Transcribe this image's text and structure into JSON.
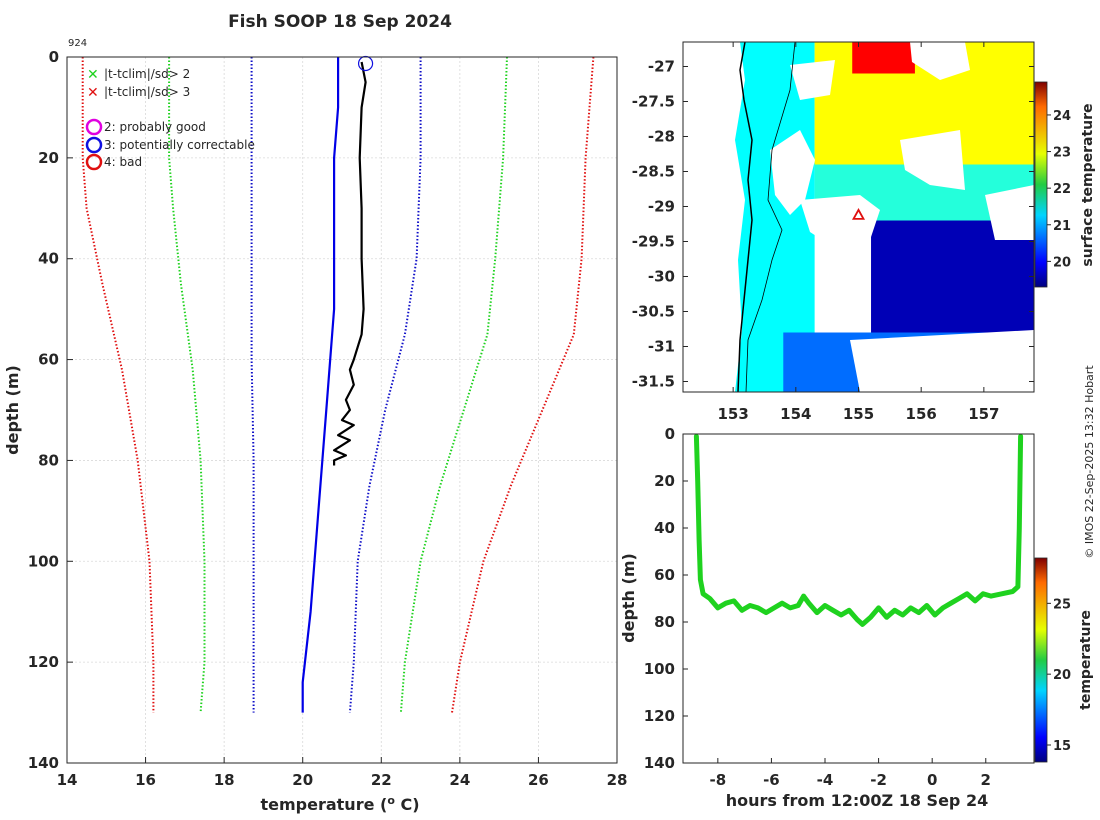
{
  "title": "Fish SOOP 18 Sep 2024",
  "id_label": "924",
  "credit": "© IMOS 22-Sep-2025 13:32 Hobart",
  "legend": {
    "items": [
      {
        "label": "|t-tclim|/sd> 2",
        "color": "#1fd21f",
        "marker": "x"
      },
      {
        "label": "|t-tclim|/sd> 3",
        "color": "#e01010",
        "marker": "x"
      },
      {
        "label": "2: probably good",
        "color": "#e000e0",
        "marker": "o"
      },
      {
        "label": "3: potentially correctable",
        "color": "#1010e0",
        "marker": "o"
      },
      {
        "label": "4: bad",
        "color": "#e01010",
        "marker": "o"
      }
    ]
  },
  "chart_data": [
    {
      "type": "line",
      "name": "temperature-profile",
      "title": "Fish SOOP 18 Sep 2024",
      "xlabel": "temperature (o C)",
      "ylabel": "depth (m)",
      "xlim": [
        14,
        28
      ],
      "ylim": [
        0,
        140
      ],
      "y_reversed": true,
      "grid": true,
      "xticks": [
        14,
        16,
        18,
        20,
        22,
        24,
        26,
        28
      ],
      "yticks": [
        0,
        20,
        40,
        60,
        80,
        100,
        120,
        140
      ],
      "series": [
        {
          "name": "clim -3sd",
          "color": "#e01010",
          "style": "dotted",
          "x": [
            14.4,
            14.4,
            14.5,
            14.9,
            15.4,
            15.8,
            16.1,
            16.2,
            16.2
          ],
          "y": [
            0,
            20,
            30,
            45,
            62,
            80,
            100,
            120,
            130
          ]
        },
        {
          "name": "clim -2sd",
          "color": "#1fd21f",
          "style": "dotted",
          "x": [
            16.6,
            16.6,
            16.7,
            16.9,
            17.2,
            17.4,
            17.5,
            17.5,
            17.4
          ],
          "y": [
            0,
            20,
            30,
            45,
            62,
            80,
            100,
            120,
            130
          ]
        },
        {
          "name": "clim -1sd",
          "color": "#1010c8",
          "style": "dotted",
          "x": [
            18.7,
            18.7,
            18.7,
            18.7,
            18.75,
            18.75,
            18.75,
            18.75
          ],
          "y": [
            0,
            20,
            40,
            60,
            80,
            100,
            120,
            130
          ]
        },
        {
          "name": "clim mean",
          "color": "#0000e6",
          "style": "solid",
          "x": [
            20.9,
            20.9,
            20.8,
            20.8,
            20.8,
            20.6,
            20.4,
            20.2,
            20.0,
            20.0
          ],
          "y": [
            0,
            10,
            20,
            30,
            50,
            70,
            90,
            110,
            124,
            130
          ]
        },
        {
          "name": "clim +1sd",
          "color": "#1010c8",
          "style": "dotted",
          "x": [
            23.0,
            23.0,
            22.9,
            22.6,
            22.1,
            21.7,
            21.4,
            21.3,
            21.2
          ],
          "y": [
            0,
            20,
            40,
            55,
            70,
            85,
            100,
            120,
            130
          ]
        },
        {
          "name": "clim +2sd",
          "color": "#1fd21f",
          "style": "dotted",
          "x": [
            25.2,
            25.1,
            24.9,
            24.7,
            24.1,
            23.5,
            23.0,
            22.6,
            22.5
          ],
          "y": [
            0,
            20,
            40,
            55,
            70,
            85,
            100,
            120,
            130
          ]
        },
        {
          "name": "clim +3sd",
          "color": "#e01010",
          "style": "dotted",
          "x": [
            27.4,
            27.2,
            27.1,
            26.9,
            26.1,
            25.3,
            24.6,
            24.0,
            23.8
          ],
          "y": [
            0,
            20,
            40,
            55,
            70,
            85,
            100,
            120,
            130
          ]
        },
        {
          "name": "observed",
          "color": "#000000",
          "style": "solid",
          "x": [
            21.5,
            21.6,
            21.5,
            21.45,
            21.5,
            21.5,
            21.55,
            21.5,
            21.3,
            21.2,
            21.3,
            21.1,
            21.2,
            21.0,
            21.3,
            20.9,
            21.2,
            20.8,
            21.1,
            20.8,
            20.8
          ],
          "y": [
            1,
            5,
            10,
            20,
            30,
            40,
            50,
            55,
            60,
            62,
            65,
            68,
            70,
            72,
            73,
            75,
            76,
            78,
            79,
            80,
            81
          ]
        }
      ],
      "qc_marker": {
        "flag": "3: potentially correctable",
        "x": 21.6,
        "y": 0.5
      }
    },
    {
      "type": "heatmap",
      "name": "sst-map",
      "colorbar_label": "surface temperature",
      "clim": [
        19.3,
        24.9
      ],
      "colorbar_ticks": [
        20,
        21,
        22,
        23,
        24
      ],
      "xlim": [
        152.2,
        157.8
      ],
      "ylim": [
        -31.65,
        -26.65
      ],
      "xticks": [
        153,
        154,
        155,
        156,
        157
      ],
      "yticks": [
        -27,
        -27.5,
        -28,
        -28.5,
        -29,
        -29.5,
        -30,
        -30.5,
        -31,
        -31.5
      ],
      "marker": {
        "lon": 155.0,
        "lat": -29.12,
        "shape": "triangle",
        "color": "#e01010"
      },
      "regions": [
        {
          "name": "coastal-shelf",
          "temp": 21.4,
          "lon": [
            152.2,
            154.3
          ],
          "lat": [
            -31.65,
            -26.65
          ]
        },
        {
          "name": "north-warm",
          "temp": 22.8,
          "lon": [
            154.3,
            157.8
          ],
          "lat": [
            -28.4,
            -26.65
          ]
        },
        {
          "name": "north-warmest",
          "temp": 24.2,
          "lon": [
            154.9,
            155.9
          ],
          "lat": [
            -27.1,
            -26.65
          ]
        },
        {
          "name": "mid-band",
          "temp": 21.6,
          "lon": [
            154.3,
            157.8
          ],
          "lat": [
            -29.2,
            -28.4
          ]
        },
        {
          "name": "south-cold",
          "temp": 19.6,
          "lon": [
            155.2,
            157.8
          ],
          "lat": [
            -30.8,
            -29.2
          ]
        },
        {
          "name": "south-cool",
          "temp": 20.6,
          "lon": [
            153.8,
            157.8
          ],
          "lat": [
            -31.65,
            -30.8
          ]
        }
      ]
    },
    {
      "type": "scatter",
      "name": "depth-time-track",
      "xlabel": "hours from 12:00Z 18 Sep 24",
      "ylabel": "depth (m)",
      "colorbar_label": "temperature",
      "clim": [
        13.8,
        28.2
      ],
      "colorbar_ticks": [
        15,
        20,
        25
      ],
      "xlim": [
        -9.3,
        3.8
      ],
      "ylim": [
        0,
        140
      ],
      "y_reversed": true,
      "xticks": [
        -8,
        -6,
        -4,
        -2,
        0,
        2
      ],
      "yticks": [
        0,
        20,
        40,
        60,
        80,
        100,
        120,
        140
      ],
      "track_temperature": 21,
      "track_color": "#1fd21f",
      "x": [
        -8.8,
        -8.75,
        -8.7,
        -8.65,
        -8.55,
        -8.3,
        -8.0,
        -7.7,
        -7.4,
        -7.1,
        -6.8,
        -6.5,
        -6.2,
        -5.9,
        -5.6,
        -5.3,
        -5.0,
        -4.8,
        -4.6,
        -4.3,
        -4.0,
        -3.7,
        -3.4,
        -3.1,
        -2.8,
        -2.6,
        -2.3,
        -2.0,
        -1.7,
        -1.4,
        -1.1,
        -0.8,
        -0.5,
        -0.2,
        0.1,
        0.4,
        0.7,
        1.0,
        1.3,
        1.6,
        1.9,
        2.2,
        2.6,
        3.0,
        3.2,
        3.25,
        3.3
      ],
      "y": [
        1,
        20,
        45,
        62,
        68,
        70,
        74,
        72,
        71,
        75,
        73,
        74,
        76,
        74,
        72,
        74,
        73,
        69,
        72,
        76,
        73,
        75,
        77,
        75,
        79,
        81,
        78,
        74,
        78,
        75,
        77,
        74,
        76,
        73,
        77,
        74,
        72,
        70,
        68,
        71,
        68,
        69,
        68,
        67,
        65,
        40,
        1
      ]
    }
  ]
}
